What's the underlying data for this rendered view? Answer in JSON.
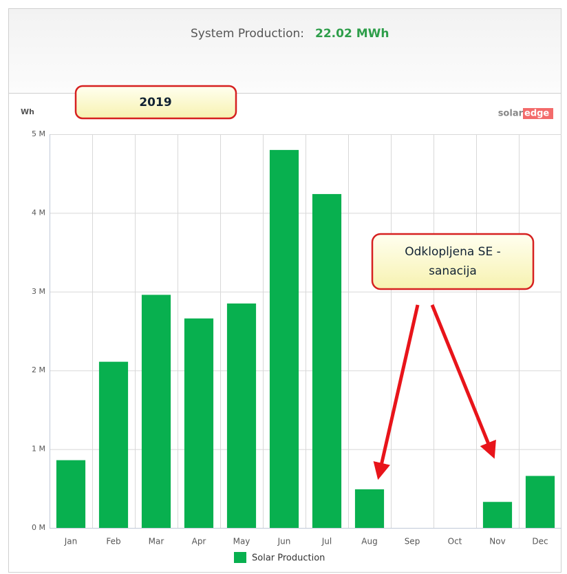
{
  "chart_data": {
    "type": "bar",
    "production_label": "System Production:",
    "production_value": "22.02 MWh",
    "y_axis_label": "Wh",
    "logo": [
      "solar",
      "edge"
    ],
    "annotations": [
      [
        "2019"
      ],
      [
        "Odklopljena SE -",
        "sanacija"
      ]
    ],
    "categories": [
      "Jan",
      "Feb",
      "Mar",
      "Apr",
      "May",
      "Jun",
      "Jul",
      "Aug",
      "Sep",
      "Oct",
      "Nov",
      "Dec"
    ],
    "series": [
      {
        "name": "Solar Production",
        "color": "#08b04f",
        "values": [
          860000,
          2110000,
          2960000,
          2660000,
          2850000,
          4800000,
          4240000,
          490000,
          0,
          0,
          330000,
          660000
        ]
      }
    ],
    "ylim": [
      0,
      5000000
    ],
    "yticks": [
      {
        "value": 0,
        "label": "0 M"
      },
      {
        "value": 1000000,
        "label": "1 M"
      },
      {
        "value": 2000000,
        "label": "2 M"
      },
      {
        "value": 3000000,
        "label": "3 M"
      },
      {
        "value": 4000000,
        "label": "4 M"
      },
      {
        "value": 5000000,
        "label": "5 M"
      }
    ],
    "grid": true,
    "legend": "bottom"
  }
}
